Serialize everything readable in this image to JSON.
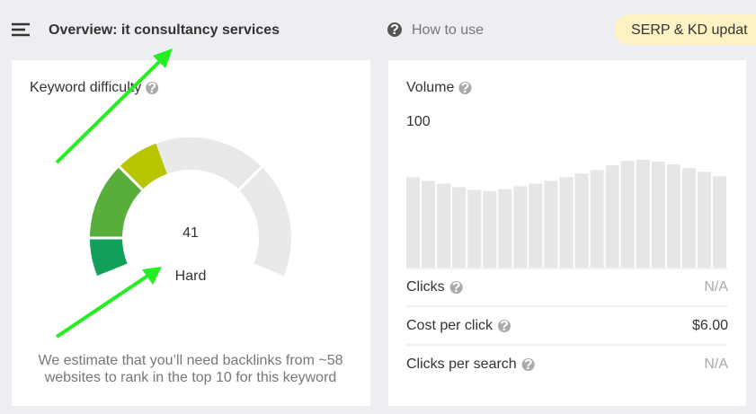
{
  "header": {
    "title": "Overview: it consultancy services",
    "help": "How to use",
    "badge": "SERP & KD updat"
  },
  "keyword_difficulty": {
    "label": "Keyword difficulty",
    "score": 41,
    "gauge_range": [
      0,
      100
    ],
    "rating": "Hard",
    "note": [
      "We estimate that you’ll need backlinks from ~58",
      "websites to rank in the top 10 for this keyword"
    ]
  },
  "volume": {
    "label": "Volume",
    "value": 100,
    "trend": [
      99,
      95,
      92,
      88,
      85,
      84,
      86,
      89,
      92,
      95,
      99,
      103,
      107,
      112,
      117,
      118,
      116,
      113,
      109,
      105,
      100
    ],
    "metrics": [
      {
        "label": "Clicks",
        "value": "N/A"
      },
      {
        "label": "Cost per click",
        "value": "$6.00"
      },
      {
        "label": "Clicks per search",
        "value": "N/A"
      }
    ]
  }
}
